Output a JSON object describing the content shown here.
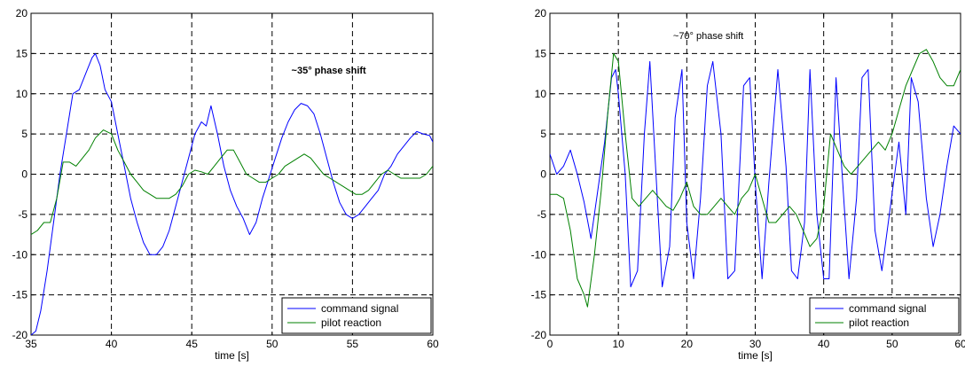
{
  "colors": {
    "command": "#0000ff",
    "pilot": "#008000",
    "grid": "#000000"
  },
  "chart_data": [
    {
      "type": "line",
      "xlabel": "time [s]",
      "ylabel": "",
      "xlim": [
        35,
        60
      ],
      "ylim": [
        -20,
        20
      ],
      "xticks": [
        "35",
        "40",
        "45",
        "50",
        "55",
        "60"
      ],
      "yticks": [
        "-20",
        "-15",
        "-10",
        "-5",
        "0",
        "5",
        "10",
        "15",
        "20"
      ],
      "grid": true,
      "legend": "bottom-right",
      "annotation": {
        "text": "~35° phase shift",
        "x": 51.2,
        "y": 12.5
      },
      "series": [
        {
          "name": "command signal",
          "color": "#0000ff",
          "x": [
            35.0,
            35.3,
            35.6,
            36.0,
            36.4,
            36.8,
            37.2,
            37.6,
            38.0,
            38.4,
            38.8,
            39.0,
            39.3,
            39.6,
            40.0,
            40.4,
            40.8,
            41.2,
            41.6,
            42.0,
            42.4,
            42.8,
            43.2,
            43.6,
            44.0,
            44.4,
            44.8,
            45.2,
            45.6,
            45.9,
            46.2,
            46.6,
            47.0,
            47.4,
            47.8,
            48.2,
            48.6,
            49.0,
            49.4,
            49.8,
            50.2,
            50.6,
            51.0,
            51.4,
            51.8,
            52.2,
            52.6,
            53.0,
            53.4,
            53.8,
            54.2,
            54.6,
            55.0,
            55.4,
            55.8,
            56.2,
            56.6,
            57.0,
            57.4,
            57.8,
            58.2,
            58.6,
            59.0,
            59.4,
            59.8,
            60.0
          ],
          "y": [
            -20,
            -19.5,
            -17,
            -12,
            -6,
            0,
            5,
            10,
            10.5,
            12.5,
            14.5,
            15,
            13.5,
            10.5,
            9,
            5,
            1,
            -3,
            -6,
            -8.5,
            -10,
            -10,
            -9,
            -7,
            -4,
            -1,
            2,
            5,
            6.5,
            6,
            8.5,
            5,
            1,
            -2,
            -4,
            -5.5,
            -7.5,
            -6,
            -3,
            -0.5,
            2,
            4.5,
            6.5,
            8,
            8.8,
            8.5,
            7.5,
            5,
            2,
            -1,
            -3.5,
            -5,
            -5.5,
            -5,
            -4,
            -3,
            -2,
            0,
            1,
            2.5,
            3.5,
            4.5,
            5.3,
            5,
            4.8,
            4
          ]
        },
        {
          "name": "pilot reaction",
          "color": "#008000",
          "x": [
            35.0,
            35.4,
            35.8,
            36.2,
            36.6,
            37.0,
            37.4,
            37.8,
            38.2,
            38.6,
            39.0,
            39.5,
            40.0,
            40.4,
            40.8,
            41.2,
            41.6,
            42.0,
            42.4,
            42.8,
            43.2,
            43.6,
            44.0,
            44.4,
            44.8,
            45.2,
            45.6,
            46.0,
            46.4,
            46.8,
            47.2,
            47.6,
            48.0,
            48.4,
            48.8,
            49.2,
            49.6,
            50.0,
            50.4,
            50.8,
            51.2,
            51.6,
            52.0,
            52.4,
            52.8,
            53.2,
            53.6,
            54.0,
            54.4,
            54.8,
            55.2,
            55.6,
            56.0,
            56.4,
            56.8,
            57.2,
            57.6,
            58.0,
            58.4,
            58.8,
            59.2,
            59.6,
            60.0
          ],
          "y": [
            -7.5,
            -7,
            -6,
            -6,
            -3,
            1.5,
            1.5,
            1,
            2,
            3,
            4.5,
            5.5,
            5,
            3,
            1.5,
            0,
            -1,
            -2,
            -2.5,
            -3,
            -3,
            -3,
            -2.5,
            -1.5,
            0,
            0.5,
            0.3,
            0,
            1,
            2,
            3,
            3,
            1.5,
            0,
            -0.5,
            -1,
            -1,
            -0.5,
            0,
            1,
            1.5,
            2,
            2.5,
            2,
            1,
            0,
            -0.5,
            -1,
            -1.5,
            -2,
            -2.5,
            -2.5,
            -2,
            -1,
            0,
            0.5,
            0,
            -0.5,
            -0.5,
            -0.5,
            -0.5,
            0,
            1
          ]
        }
      ]
    },
    {
      "type": "line",
      "xlabel": "time [s]",
      "ylabel": "",
      "xlim": [
        0,
        60
      ],
      "ylim": [
        -20,
        20
      ],
      "xticks": [
        "0",
        "10",
        "20",
        "30",
        "40",
        "50",
        "60"
      ],
      "yticks": [
        "-20",
        "-15",
        "-10",
        "-5",
        "0",
        "5",
        "10",
        "15",
        "20"
      ],
      "grid": true,
      "legend": "bottom-right",
      "annotation": {
        "text": "~70° phase shift",
        "x": 18,
        "y": 16.8
      },
      "series": [
        {
          "name": "command signal",
          "color": "#0000ff",
          "x": [
            0,
            1,
            2,
            3,
            4,
            5,
            6,
            7,
            8,
            9,
            9.6,
            10,
            11,
            11.8,
            12.8,
            13.8,
            14.6,
            15.5,
            16.4,
            17.5,
            18.3,
            19.3,
            20,
            21,
            22,
            23,
            23.8,
            25,
            26,
            27,
            28.3,
            29.2,
            30,
            31,
            32,
            33.3,
            34.5,
            35.3,
            36.2,
            37.2,
            38,
            39,
            40,
            40.8,
            41.8,
            42.7,
            43.7,
            44.8,
            45.6,
            46.5,
            47.5,
            48.5,
            49.6,
            51,
            52,
            52.8,
            53.8,
            55,
            56,
            57,
            58,
            59,
            60
          ],
          "y": [
            2.5,
            0,
            1,
            3,
            0,
            -3.5,
            -8,
            -2,
            4,
            12,
            13,
            10,
            0,
            -14,
            -12,
            5,
            14,
            0,
            -14,
            -9,
            7,
            13,
            -6,
            -13,
            -3,
            11,
            14,
            5,
            -13,
            -12,
            11,
            12,
            -1,
            -13,
            -1,
            13,
            1,
            -12,
            -13,
            -6,
            13,
            -5,
            -13,
            -13,
            12,
            0,
            -13,
            -3,
            12,
            13,
            -7,
            -12,
            -5,
            4,
            -5,
            12,
            9,
            -3,
            -9,
            -5,
            1,
            6,
            5
          ]
        },
        {
          "name": "pilot reaction",
          "color": "#008000",
          "x": [
            0,
            1,
            2,
            3,
            4,
            5,
            5.5,
            6.5,
            7.5,
            8.5,
            9.3,
            10,
            11,
            12,
            13,
            14,
            15,
            16,
            17,
            18,
            19,
            20,
            21,
            22,
            23,
            24,
            25,
            26,
            27,
            28,
            29,
            30,
            31,
            32,
            33,
            34,
            35,
            36,
            37,
            38,
            39,
            40,
            41,
            42,
            43,
            44,
            45,
            46,
            47,
            48,
            49,
            50,
            51,
            52,
            53,
            54,
            55,
            56,
            57,
            58,
            59,
            60
          ],
          "y": [
            -2.5,
            -2.5,
            -3,
            -7,
            -13,
            -15,
            -16.5,
            -10,
            -2,
            8,
            15,
            14,
            5,
            -3,
            -4,
            -3,
            -2,
            -3,
            -4,
            -4.5,
            -3,
            -1,
            -4,
            -5,
            -5,
            -4,
            -3,
            -4,
            -5,
            -3,
            -2,
            0,
            -3,
            -6,
            -6,
            -5,
            -4,
            -5,
            -7,
            -9,
            -8,
            -4,
            5,
            3,
            1,
            0,
            1,
            2,
            3,
            4,
            3,
            5,
            8,
            11,
            13,
            15,
            15.5,
            14,
            12,
            11,
            11,
            13
          ]
        }
      ]
    }
  ]
}
